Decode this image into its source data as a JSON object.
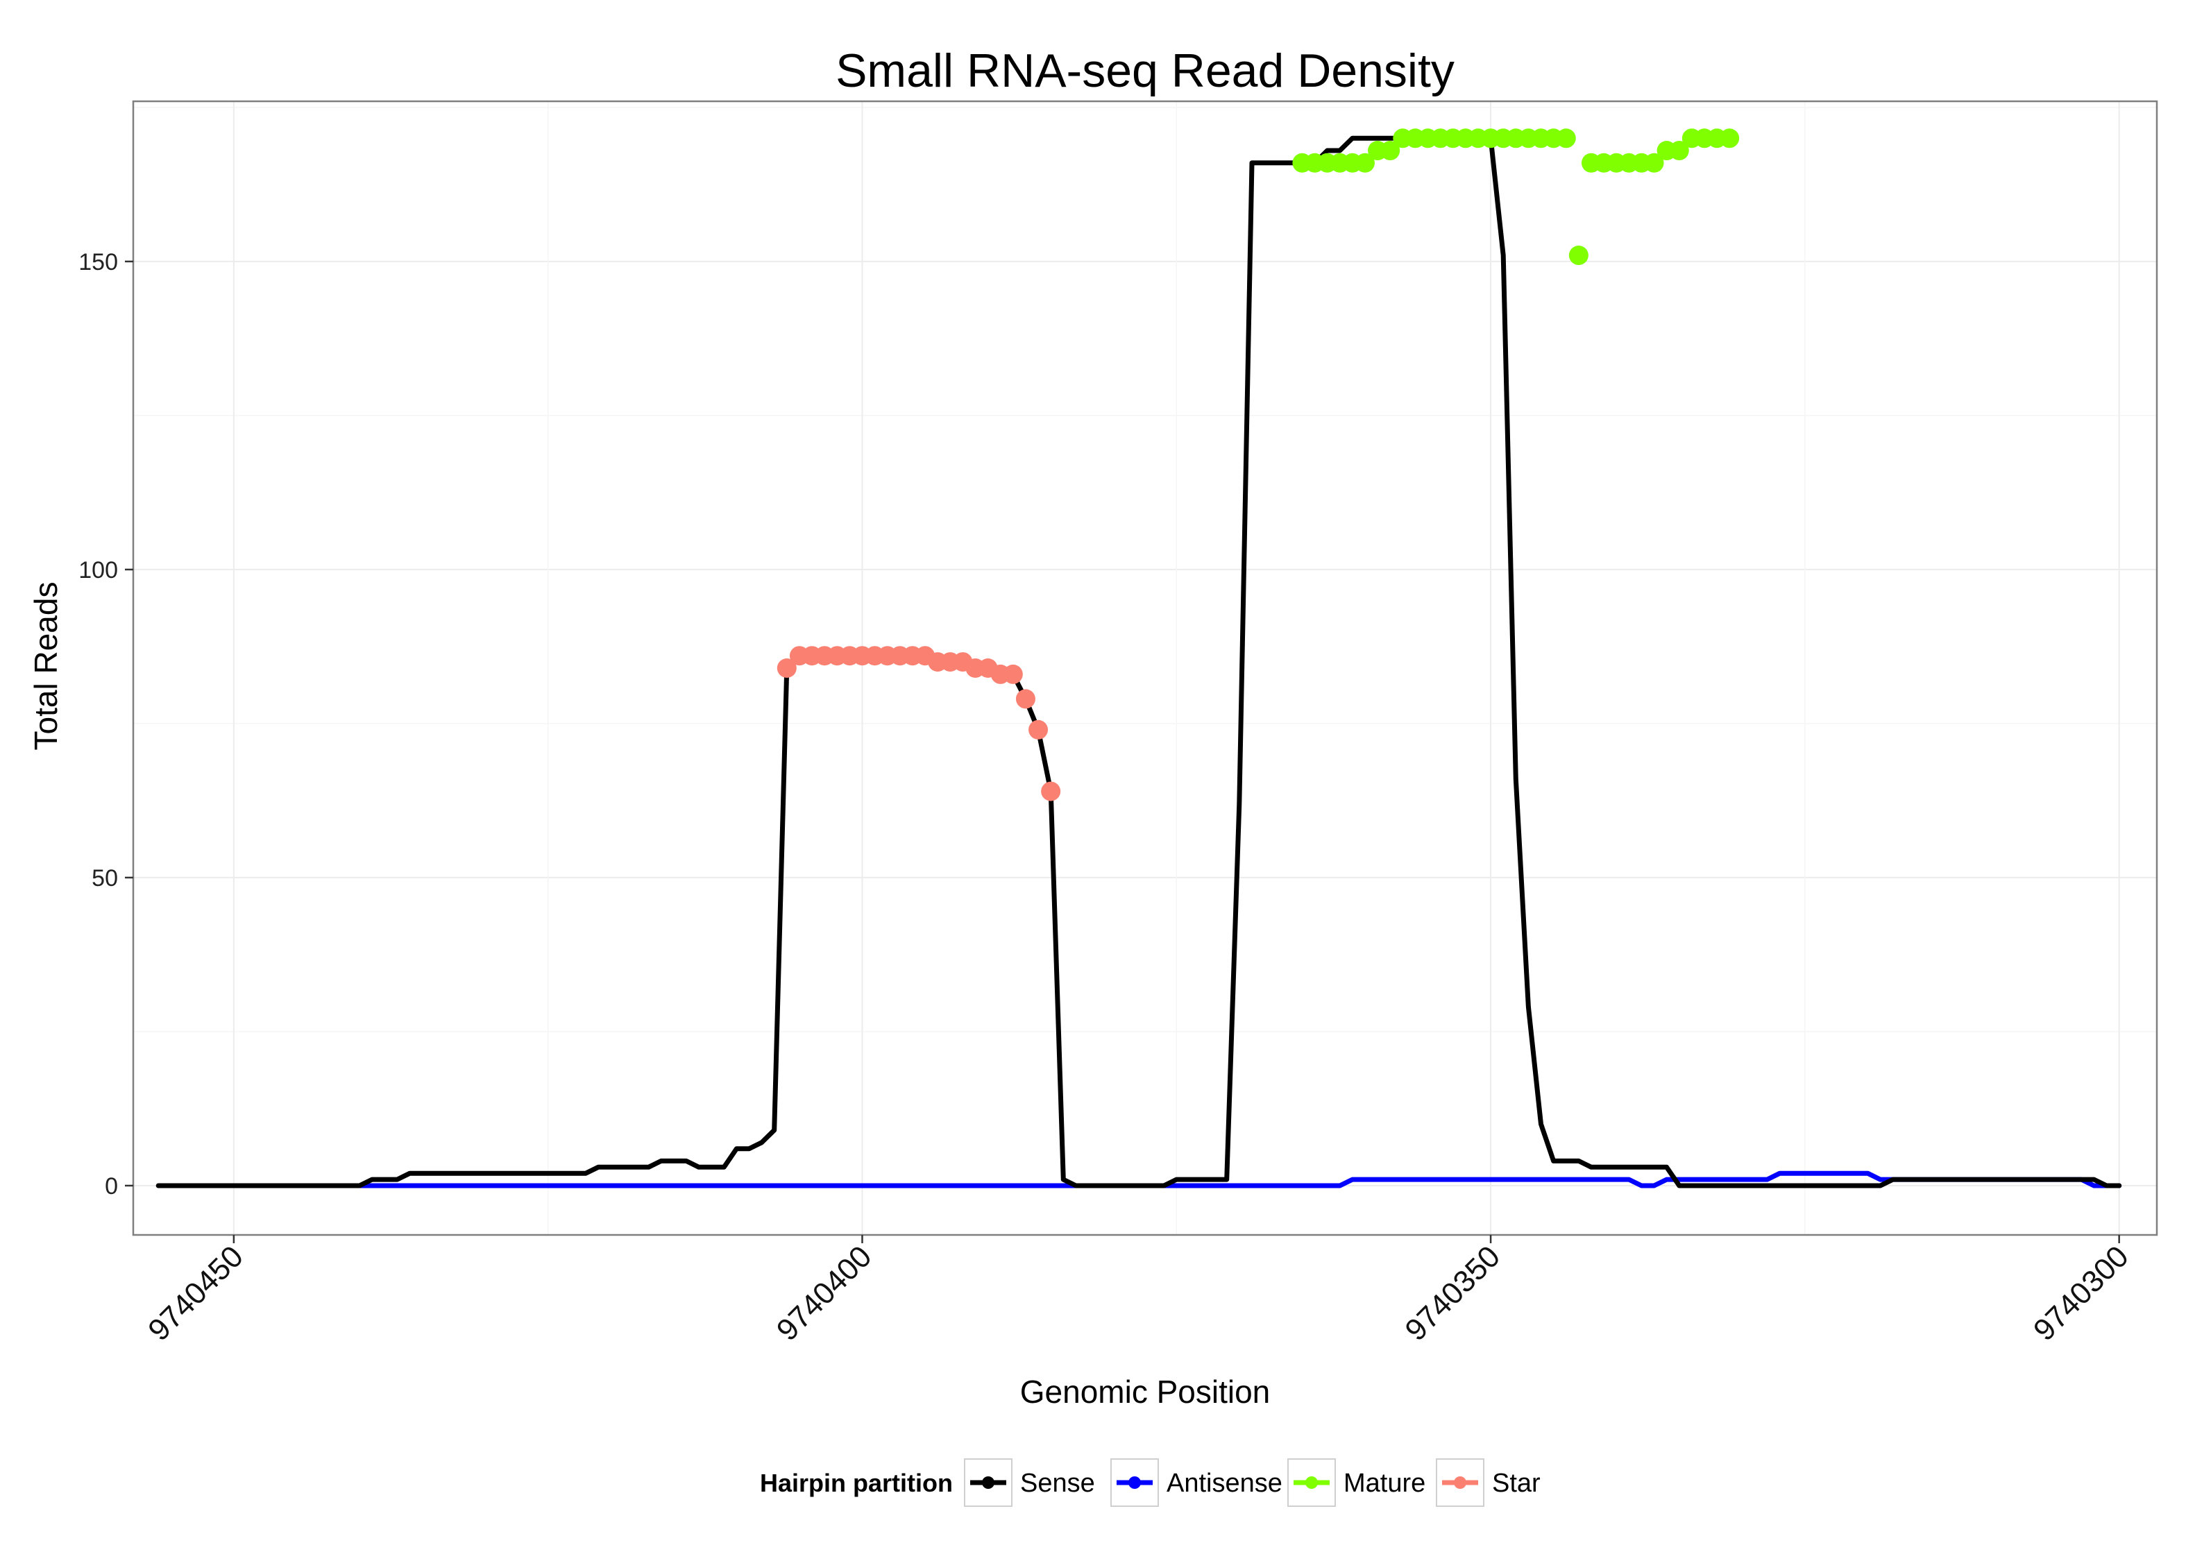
{
  "chart_data": {
    "type": "line",
    "title": "Small RNA-seq Read Density",
    "xlabel": "Genomic Position",
    "ylabel": "Total Reads",
    "x_reversed": true,
    "xlim": [
      9740458,
      9740297
    ],
    "ylim": [
      -8,
      176
    ],
    "x_ticks": [
      9740450,
      9740400,
      9740350,
      9740300
    ],
    "y_ticks": [
      0,
      50,
      100,
      150
    ],
    "grid": true,
    "legend": {
      "title": "Hairpin partition",
      "position": "bottom",
      "entries": [
        "Sense",
        "Antisense",
        "Mature",
        "Star"
      ]
    },
    "series": [
      {
        "name": "Sense",
        "color": "#000000",
        "style": "line",
        "x": [
          9740456,
          9740440,
          9740439,
          9740437,
          9740436,
          9740422,
          9740421,
          9740417,
          9740416,
          9740414,
          9740413,
          9740412,
          9740411,
          9740410,
          9740409,
          9740408,
          9740407,
          9740406,
          9740405,
          9740404,
          9740403,
          9740402,
          9740401,
          9740400,
          9740399,
          9740398,
          9740397,
          9740396,
          9740395,
          9740394,
          9740393,
          9740392,
          9740391,
          9740390,
          9740389,
          9740388,
          9740387,
          9740386,
          9740385,
          9740384,
          9740383,
          9740382,
          9740381,
          9740380,
          9740379,
          9740378,
          9740377,
          9740376,
          9740375,
          9740374,
          9740373,
          9740372,
          9740371,
          9740370,
          9740369,
          9740368,
          9740367,
          9740366,
          9740365,
          9740364,
          9740363,
          9740362,
          9740361,
          9740360,
          9740359,
          9740358,
          9740357,
          9740356,
          9740355,
          9740354,
          9740353,
          9740352,
          9740351,
          9740350,
          9740349,
          9740348,
          9740347,
          9740346,
          9740345,
          9740344,
          9740343,
          9740342,
          9740341,
          9740340,
          9740339,
          9740338,
          9740337,
          9740336,
          9740335,
          9740334,
          9740320,
          9740319,
          9740318,
          9740305,
          9740304,
          9740303,
          9740302,
          9740301,
          9740300
        ],
        "y": [
          0,
          0,
          1,
          1,
          2,
          2,
          3,
          3,
          4,
          4,
          3,
          3,
          3,
          6,
          6,
          7,
          9,
          84,
          86,
          86,
          86,
          86,
          86,
          86,
          86,
          86,
          86,
          86,
          86,
          85,
          85,
          85,
          84,
          84,
          83,
          83,
          79,
          74,
          64,
          1,
          0,
          0,
          0,
          0,
          0,
          0,
          0,
          0,
          1,
          1,
          1,
          1,
          1,
          62,
          166,
          166,
          166,
          166,
          166,
          166,
          168,
          168,
          170,
          170,
          170,
          170,
          170,
          170,
          170,
          170,
          170,
          170,
          170,
          170,
          151,
          66,
          29,
          10,
          4,
          4,
          4,
          3,
          3,
          3,
          3,
          3,
          3,
          3,
          0,
          0,
          0,
          0,
          1,
          1,
          1,
          1,
          1,
          0,
          0
        ]
      },
      {
        "name": "Antisense",
        "color": "#0000FF",
        "style": "line",
        "x": [
          9740440,
          9740362,
          9740361,
          9740339,
          9740338,
          9740337,
          9740336,
          9740328,
          9740327,
          9740320,
          9740319,
          9740303,
          9740302,
          9740300
        ],
        "y": [
          0,
          0,
          1,
          1,
          0,
          0,
          1,
          1,
          2,
          2,
          1,
          1,
          0,
          0
        ]
      },
      {
        "name": "Mature",
        "color": "#7FFF00",
        "style": "points",
        "x": [
          9740365,
          9740364,
          9740363,
          9740362,
          9740361,
          9740360,
          9740359,
          9740358,
          9740357,
          9740356,
          9740355,
          9740354,
          9740353,
          9740352,
          9740351,
          9740350,
          9740349,
          9740348,
          9740347,
          9740346,
          9740345,
          9740344,
          9740343,
          9740342,
          9740341,
          9740340,
          9740339,
          9740338,
          9740337,
          9740336,
          9740335,
          9740334,
          9740333,
          9740332,
          9740331
        ],
        "y": [
          166,
          166,
          166,
          166,
          166,
          166,
          168,
          168,
          170,
          170,
          170,
          170,
          170,
          170,
          170,
          170,
          170,
          170,
          170,
          170,
          170,
          170,
          151,
          166,
          166,
          166,
          166,
          166,
          166,
          168,
          168,
          170,
          170,
          170,
          170
        ]
      },
      {
        "name": "Star",
        "color": "#FA8072",
        "style": "points",
        "x": [
          9740406,
          9740405,
          9740404,
          9740403,
          9740402,
          9740401,
          9740400,
          9740399,
          9740398,
          9740397,
          9740396,
          9740395,
          9740394,
          9740393,
          9740392,
          9740391,
          9740390,
          9740389,
          9740388,
          9740387,
          9740386,
          9740385
        ],
        "y": [
          84,
          86,
          86,
          86,
          86,
          86,
          86,
          86,
          86,
          86,
          86,
          86,
          85,
          85,
          85,
          84,
          84,
          83,
          83,
          79,
          74,
          64
        ]
      }
    ]
  }
}
